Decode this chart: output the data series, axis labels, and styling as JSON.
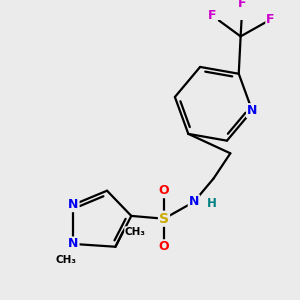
{
  "bg_color": "#ebebeb",
  "atom_colors": {
    "C": "#000000",
    "N": "#0000ee",
    "S": "#ccaa00",
    "O": "#ff0000",
    "F": "#cc00cc",
    "H": "#008080"
  },
  "bond_color": "#000000",
  "bond_width": 1.6
}
